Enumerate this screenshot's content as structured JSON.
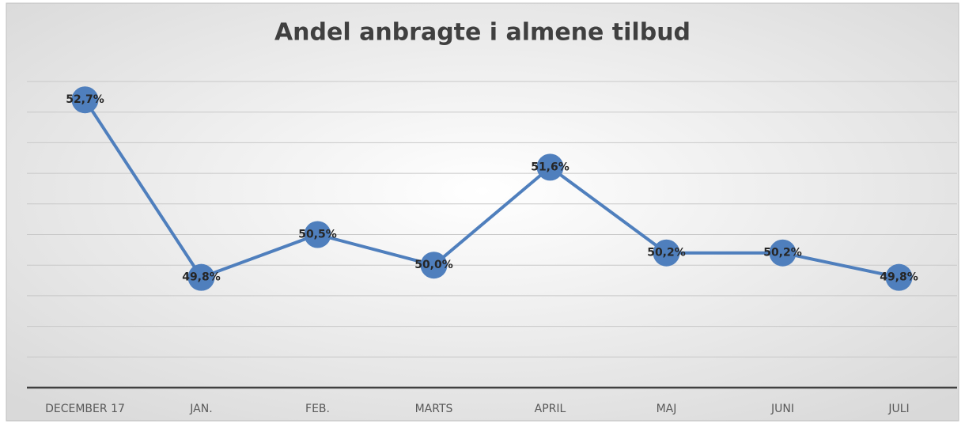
{
  "chart_data": {
    "type": "line",
    "title": "Andel anbragte i almene tilbud",
    "categories": [
      "DECEMBER 17",
      "JAN.",
      "FEB.",
      "MARTS",
      "APRIL",
      "MAJ",
      "JUNI",
      "JULI"
    ],
    "series": [
      {
        "name": "Andel anbragte i almene tilbud",
        "color": "#4f7fbd",
        "values": [
          52.7,
          49.8,
          50.5,
          50.0,
          51.6,
          50.2,
          50.2,
          49.8
        ],
        "value_labels": [
          "52,7%",
          "49,8%",
          "50,5%",
          "50,0%",
          "51,6%",
          "50,2%",
          "50,2%",
          "49,8%"
        ]
      }
    ],
    "ylim": [
      48,
      53
    ],
    "yticks": [
      48,
      48.5,
      49,
      49.5,
      50,
      50.5,
      51,
      51.5,
      52,
      52.5,
      53
    ],
    "grid": true
  }
}
